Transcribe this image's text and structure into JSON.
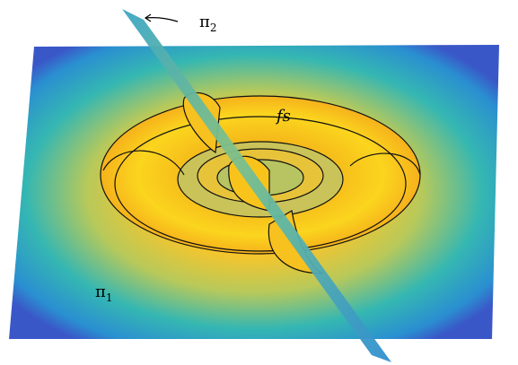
{
  "labels": {
    "pi2": {
      "base": "π",
      "sub": "2"
    },
    "fs": "fs",
    "pi1": {
      "base": "π",
      "sub": "1"
    }
  }
}
